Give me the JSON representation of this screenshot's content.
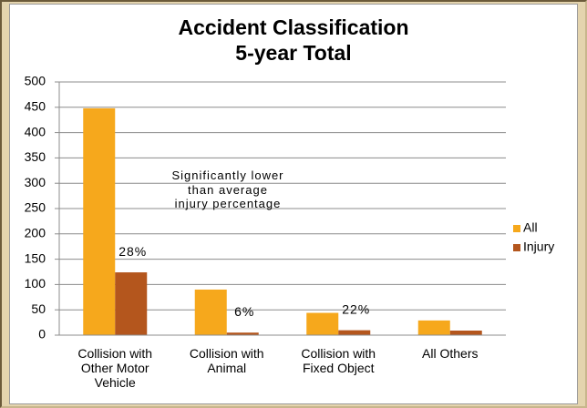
{
  "chart_data": {
    "type": "bar",
    "title": "Accident Classification",
    "subtitle": "5-year Total",
    "categories": [
      "Collision with Other Motor Vehicle",
      "Collision with Animal",
      "Collision with Fixed Object",
      "All Others"
    ],
    "series": [
      {
        "name": "All",
        "color": "#f6a81c",
        "values": [
          448,
          90,
          44,
          29
        ]
      },
      {
        "name": "Injury",
        "color": "#b4561d",
        "values": [
          124,
          5,
          9.7,
          9
        ],
        "data_labels": [
          "28%",
          "6%",
          "22%",
          null
        ]
      }
    ],
    "annotation": "Significantly lower than average injury percentage",
    "ylim": [
      0,
      500
    ],
    "yticks": [
      0,
      50,
      100,
      150,
      200,
      250,
      300,
      350,
      400,
      450,
      500
    ],
    "grid": true,
    "legend": "right"
  }
}
